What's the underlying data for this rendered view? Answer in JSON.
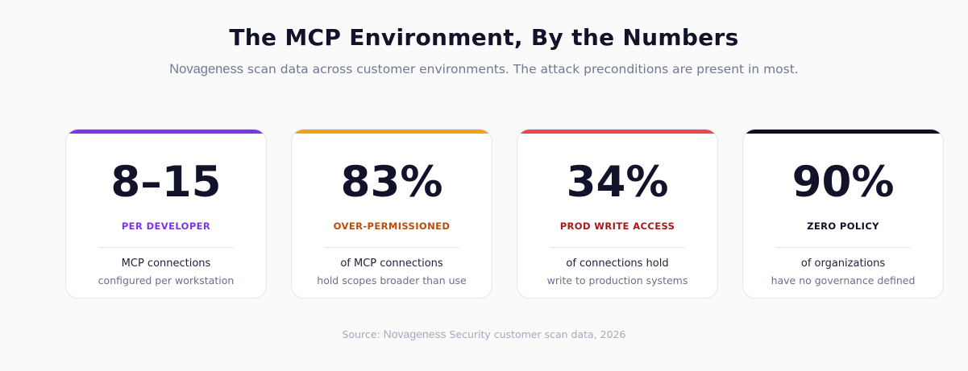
{
  "header": {
    "title": "The MCP Environment, By the Numbers",
    "subtitle_brand": "Novageness",
    "subtitle_rest": " scan data across customer environments. The attack preconditions are present in most."
  },
  "cards": [
    {
      "value": "8–15",
      "label": "PER DEVELOPER",
      "desc_main": "MCP connections",
      "desc_sub": "configured per workstation",
      "accent_color": "#7b35ea",
      "label_color": "#7b35ea"
    },
    {
      "value": "83%",
      "label": "OVER-PERMISSIONED",
      "desc_main": "of MCP connections",
      "desc_sub": "hold scopes broader than use",
      "accent_color": "#f2a115",
      "label_color": "#bb4c0c"
    },
    {
      "value": "34%",
      "label": "PROD WRITE ACCESS",
      "desc_main": "of connections hold",
      "desc_sub": "write to production systems",
      "accent_color": "#ea4a45",
      "label_color": "#a81818"
    },
    {
      "value": "90%",
      "label": "ZERO POLICY",
      "desc_main": "of organizations",
      "desc_sub": "have no governance defined",
      "accent_color": "#0f0f24",
      "label_color": "#0f0f24"
    }
  ],
  "footer": {
    "source_prefix": "Source: ",
    "source_brand": "Novageness",
    "source_rest": " Security customer scan data, 2026"
  }
}
